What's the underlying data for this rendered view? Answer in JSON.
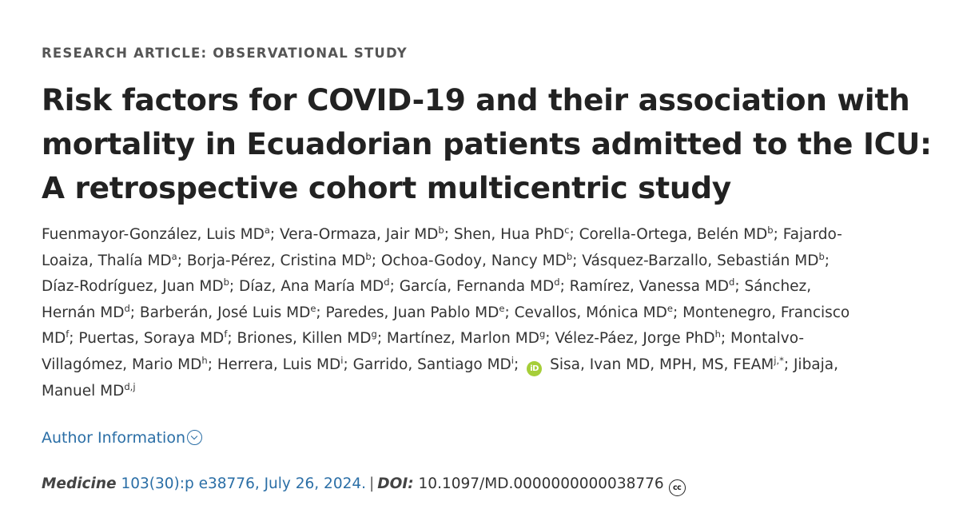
{
  "article_type": "RESEARCH ARTICLE: OBSERVATIONAL STUDY",
  "title_lines": [
    "Risk factors for COVID-19 and their association with",
    "mortality in Ecuadorian patients admitted to the ICU:",
    "A retrospective cohort multicentric study"
  ],
  "authors": {
    "line1": {
      "t1": "Fuenmayor-González, Luis MD",
      "s1": "a",
      "t2": "; Vera-Ormaza, Jair MD",
      "s2": "b",
      "t3": "; Shen, Hua PhD",
      "s3": "c",
      "t4": "; Corella-Ortega, Belén MD",
      "s4": "b",
      "t5": "; Fajardo-"
    },
    "line2": {
      "t1": "Loaiza, Thalía MD",
      "s1": "a",
      "t2": "; Borja-Pérez, Cristina MD",
      "s2": "b",
      "t3": "; Ochoa-Godoy, Nancy MD",
      "s3": "b",
      "t4": "; Vásquez-Barzallo, Sebastián MD",
      "s4": "b",
      "t5": ";"
    },
    "line3": {
      "t1": "Díaz-Rodríguez, Juan MD",
      "s1": "b",
      "t2": "; Díaz, Ana María MD",
      "s2": "d",
      "t3": "; García, Fernanda MD",
      "s3": "d",
      "t4": "; Ramírez, Vanessa MD",
      "s4": "d",
      "t5": "; Sánchez,"
    },
    "line4": {
      "t1": "Hernán MD",
      "s1": "d",
      "t2": "; Barberán, José Luis MD",
      "s2": "e",
      "t3": "; Paredes, Juan Pablo MD",
      "s3": "e",
      "t4": "; Cevallos, Mónica MD",
      "s4": "e",
      "t5": "; Montenegro, Francisco"
    },
    "line5": {
      "t1": "MD",
      "s1": "f",
      "t2": "; Puertas, Soraya MD",
      "s2": "f",
      "t3": "; Briones, Killen MD",
      "s3": "g",
      "t4": "; Martínez, Marlon MD",
      "s4": "g",
      "t5": "; Vélez-Páez, Jorge PhD",
      "s5": "h",
      "t6": "; Montalvo-"
    },
    "line6": {
      "t1": "Villagómez, Mario MD",
      "s1": "h",
      "t2": "; Herrera, Luis MD",
      "s2": "i",
      "t3": "; Garrido, Santiago MD",
      "s3": "i",
      "t4": ";",
      "orcid_icon": "orcid-icon",
      "t5": "Sisa, Ivan MD, MPH, MS, FEAM",
      "s5": "j,*",
      "t6": "; Jibaja,"
    },
    "line7": {
      "t1": "Manuel MD",
      "s1": "d,j"
    }
  },
  "author_information_label": "Author Information",
  "citation": {
    "journal": "Medicine",
    "reference": "103(30):p e38776, July 26, 2024.",
    "separator": "|",
    "doi_label": "DOI:",
    "doi": "10.1097/MD.0000000000038776",
    "license_icon": "cc-icon"
  },
  "colors": {
    "link": "#2a6ea6",
    "orcid": "#a6ce39",
    "title": "#222222"
  }
}
